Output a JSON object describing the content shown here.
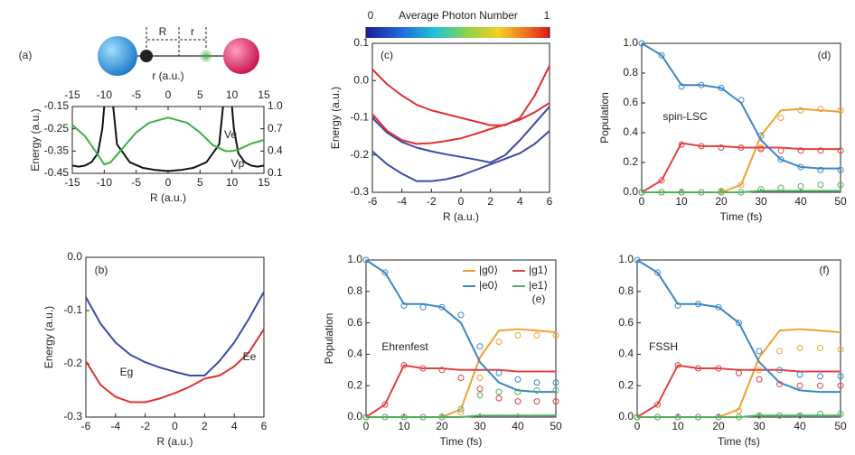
{
  "chart_data": [
    {
      "type": "line",
      "label": "(a)",
      "annotations": [
        "R",
        "r"
      ],
      "y_label": "Energy (a.u.)",
      "x_label": "R (a.u.)",
      "x2_label": "r (a.u.)",
      "x2_color": "#3cb043",
      "xlim": [
        -15,
        15
      ],
      "xticks": [
        -15,
        -10,
        -5,
        0,
        5,
        10,
        15
      ],
      "x2lim": [
        -15,
        15
      ],
      "x2ticks": [
        -15,
        -10,
        -5,
        0,
        5,
        10,
        15
      ],
      "ylim": [
        -0.45,
        -0.15
      ],
      "yticks": [
        -0.45,
        -0.35,
        -0.25,
        -0.15
      ],
      "y2lim": [
        0.1,
        1.0
      ],
      "y2ticks": [
        0.1,
        0.4,
        0.7,
        {
          "value": 1,
          "label": "1.0"
        }
      ],
      "series": [
        {
          "name": "Vp",
          "color": "#111111",
          "x": [
            -15,
            -14,
            -13,
            -12,
            -11,
            -10.3,
            -10,
            -9,
            -8.6,
            -8,
            -6,
            -4,
            -2,
            0,
            2,
            4,
            6,
            8,
            8.6,
            9,
            10,
            10.3,
            11,
            12,
            13,
            14,
            15
          ],
          "values": [
            -0.415,
            -0.42,
            -0.415,
            -0.4,
            -0.36,
            -0.25,
            -0.15,
            null,
            -0.15,
            -0.32,
            -0.4,
            -0.425,
            -0.435,
            -0.44,
            -0.435,
            -0.425,
            -0.4,
            -0.32,
            -0.15,
            null,
            -0.15,
            -0.25,
            -0.36,
            -0.4,
            -0.415,
            -0.42,
            -0.415
          ]
        },
        {
          "name": "Ve",
          "color": "#3cb043",
          "axis": "y2",
          "x_axis": "x2",
          "x": [
            -15,
            -13,
            -11,
            -10,
            -9,
            -7,
            -5,
            -3,
            0,
            3,
            5,
            7,
            9,
            10,
            11,
            13,
            15
          ],
          "values": [
            0.75,
            0.6,
            0.35,
            0.22,
            0.25,
            0.45,
            0.65,
            0.78,
            0.85,
            0.78,
            0.65,
            0.48,
            0.4,
            0.4,
            0.42,
            0.5,
            0.55
          ]
        }
      ]
    },
    {
      "type": "line",
      "label": "(b)",
      "y_label": "Energy (a.u.)",
      "x_label": "R (a.u.)",
      "xlim": [
        -6,
        6
      ],
      "xticks": [
        -6,
        -4,
        -2,
        0,
        2,
        4,
        6
      ],
      "ylim": [
        -0.3,
        0
      ],
      "yticks": [
        -0.3,
        -0.2,
        -0.1,
        {
          "value": 0,
          "label": "0.0"
        }
      ],
      "x": [
        -6,
        -5,
        -4,
        -3,
        -2,
        -1,
        0,
        1,
        2,
        3,
        4,
        5,
        6
      ],
      "series": [
        {
          "name": "Eg",
          "color": "#e03030",
          "values": [
            -0.195,
            -0.24,
            -0.262,
            -0.272,
            -0.272,
            -0.265,
            -0.255,
            -0.243,
            -0.228,
            -0.222,
            -0.205,
            -0.178,
            -0.135
          ]
        },
        {
          "name": "Ee",
          "color": "#3a4aa8",
          "values": [
            -0.075,
            -0.125,
            -0.16,
            -0.183,
            -0.197,
            -0.207,
            -0.215,
            -0.222,
            -0.222,
            -0.195,
            -0.16,
            -0.115,
            -0.065
          ]
        }
      ]
    },
    {
      "type": "line",
      "label": "(c)",
      "y_label": "Energy (a.u.)",
      "x_label": "R (a.u.)",
      "colorbar": {
        "label": "Average Photon Number",
        "ticks": [
          0,
          1
        ]
      },
      "xlim": [
        -6,
        6
      ],
      "xticks": [
        -6,
        -4,
        -2,
        0,
        2,
        4,
        6
      ],
      "ylim": [
        -0.3,
        0.1
      ],
      "yticks": [
        -0.3,
        -0.2,
        -0.1,
        {
          "value": 0,
          "label": "0.0"
        },
        0.1
      ],
      "x": [
        -6,
        -5,
        -4,
        -3,
        -2,
        -1,
        0,
        1,
        2,
        3,
        4,
        5,
        6
      ],
      "series": [
        {
          "color": "#3a4aa8",
          "values": [
            -0.19,
            -0.225,
            -0.25,
            -0.27,
            -0.27,
            -0.265,
            -0.255,
            -0.24,
            -0.225,
            -0.21,
            -0.195,
            -0.17,
            -0.135
          ]
        },
        {
          "color": "#3a4aa8",
          "values": [
            -0.1,
            -0.14,
            -0.165,
            -0.18,
            -0.19,
            -0.198,
            -0.205,
            -0.212,
            -0.22,
            -0.2,
            -0.16,
            -0.115,
            -0.07
          ]
        },
        {
          "color": "#e03030",
          "values": [
            -0.09,
            -0.135,
            -0.16,
            -0.17,
            -0.168,
            -0.162,
            -0.155,
            -0.143,
            -0.13,
            -0.118,
            -0.105,
            -0.085,
            -0.06
          ]
        },
        {
          "color": "#e03030",
          "values": [
            0.03,
            -0.01,
            -0.04,
            -0.065,
            -0.08,
            -0.09,
            -0.1,
            -0.11,
            -0.12,
            -0.12,
            -0.1,
            -0.04,
            0.04
          ]
        }
      ]
    },
    {
      "type": "line",
      "label": "(d)",
      "annotations": [
        "spin-LSC"
      ],
      "y_label": "Population",
      "x_label": "Time (fs)",
      "xlim": [
        0,
        50
      ],
      "xticks": [
        0,
        10,
        20,
        30,
        40,
        50
      ],
      "ylim": [
        0,
        1
      ],
      "yticks": [
        {
          "value": 0,
          "label": "0.0"
        },
        0.2,
        0.4,
        0.6,
        0.8,
        {
          "value": 1,
          "label": "1.0"
        }
      ],
      "x": [
        0,
        5,
        10,
        15,
        20,
        25,
        30,
        35,
        40,
        45,
        50
      ],
      "series": [
        {
          "color": "#f0a030",
          "values": [
            0,
            0,
            0,
            0,
            0,
            0.05,
            0.38,
            0.55,
            0.56,
            0.55,
            0.54
          ]
        },
        {
          "color": "#e04040",
          "values": [
            0,
            0.08,
            0.33,
            0.31,
            0.31,
            0.3,
            0.3,
            0.3,
            0.29,
            0.29,
            0.29
          ]
        },
        {
          "color": "#3a86c8",
          "values": [
            1,
            0.92,
            0.72,
            0.72,
            0.7,
            0.6,
            0.35,
            0.22,
            0.17,
            0.16,
            0.16
          ]
        },
        {
          "color": "#50b060",
          "values": [
            0,
            0,
            0,
            0,
            0,
            0,
            0.01,
            0.01,
            0.01,
            0.01,
            0.01
          ]
        },
        {
          "color": "#f0a030",
          "marker": "circle",
          "values": [
            0,
            0,
            0,
            0,
            0.01,
            0.05,
            0.3,
            0.5,
            0.55,
            0.56,
            0.55
          ]
        },
        {
          "color": "#e04040",
          "marker": "circle",
          "values": [
            0,
            0.08,
            0.32,
            0.31,
            0.3,
            0.3,
            0.29,
            0.28,
            0.28,
            0.28,
            0.28
          ]
        },
        {
          "color": "#3a86c8",
          "marker": "circle",
          "values": [
            1,
            0.92,
            0.71,
            0.72,
            0.7,
            0.62,
            0.38,
            0.22,
            0.17,
            0.15,
            0.15
          ]
        },
        {
          "color": "#50b060",
          "marker": "circle",
          "values": [
            0,
            0,
            0,
            0,
            0,
            0,
            0.02,
            0.03,
            0.04,
            0.05,
            0.05
          ]
        }
      ]
    },
    {
      "type": "line",
      "label": "(e)",
      "annotations": [
        "Ehrenfest"
      ],
      "y_label": "Population",
      "x_label": "Time (fs)",
      "legend": "top-right",
      "xlim": [
        0,
        50
      ],
      "xticks": [
        0,
        10,
        20,
        30,
        40,
        50
      ],
      "ylim": [
        0,
        1
      ],
      "yticks": [
        {
          "value": 0,
          "label": "0.0"
        },
        0.2,
        0.4,
        0.6,
        0.8,
        {
          "value": 1,
          "label": "1.0"
        }
      ],
      "x": [
        0,
        5,
        10,
        15,
        20,
        25,
        30,
        35,
        40,
        45,
        50
      ],
      "series": [
        {
          "name": "|g0⟩",
          "color": "#f0a030",
          "values": [
            0,
            0,
            0,
            0,
            0,
            0.05,
            0.38,
            0.55,
            0.56,
            0.55,
            0.54
          ]
        },
        {
          "name": "|g1⟩",
          "color": "#e04040",
          "values": [
            0,
            0.08,
            0.33,
            0.31,
            0.31,
            0.3,
            0.3,
            0.3,
            0.29,
            0.29,
            0.29
          ]
        },
        {
          "name": "|e0⟩",
          "color": "#3a86c8",
          "values": [
            1,
            0.92,
            0.72,
            0.72,
            0.7,
            0.6,
            0.35,
            0.22,
            0.17,
            0.16,
            0.16
          ]
        },
        {
          "name": "|e1⟩",
          "color": "#50b060",
          "values": [
            0,
            0,
            0,
            0,
            0,
            0,
            0.01,
            0.01,
            0.01,
            0.01,
            0.01
          ]
        },
        {
          "color": "#f0a030",
          "marker": "circle",
          "values": [
            0,
            0,
            0,
            0,
            0,
            0.03,
            0.25,
            0.48,
            0.52,
            0.52,
            0.52
          ]
        },
        {
          "color": "#e04040",
          "marker": "circle",
          "values": [
            0,
            0.08,
            0.33,
            0.31,
            0.3,
            0.25,
            0.18,
            0.12,
            0.1,
            0.1,
            0.1
          ]
        },
        {
          "color": "#3a86c8",
          "marker": "circle",
          "values": [
            1,
            0.92,
            0.71,
            0.7,
            0.7,
            0.65,
            0.45,
            0.28,
            0.24,
            0.22,
            0.22
          ]
        },
        {
          "color": "#50b060",
          "marker": "circle",
          "values": [
            0,
            0,
            0,
            0,
            0,
            0.05,
            0.14,
            0.16,
            0.16,
            0.17,
            0.17
          ]
        }
      ]
    },
    {
      "type": "line",
      "label": "(f)",
      "annotations": [
        "FSSH"
      ],
      "x_label": "Time (fs)",
      "xlim": [
        0,
        50
      ],
      "xticks": [
        0,
        10,
        20,
        30,
        40,
        50
      ],
      "ylim": [
        0,
        1
      ],
      "yticks": [
        {
          "value": 0,
          "label": "0.0"
        },
        0.2,
        0.4,
        0.6,
        0.8,
        {
          "value": 1,
          "label": "1.0"
        }
      ],
      "x": [
        0,
        5,
        10,
        15,
        20,
        25,
        30,
        35,
        40,
        45,
        50
      ],
      "series": [
        {
          "color": "#f0a030",
          "values": [
            0,
            0,
            0,
            0,
            0,
            0.05,
            0.38,
            0.55,
            0.56,
            0.55,
            0.54
          ]
        },
        {
          "color": "#e04040",
          "values": [
            0,
            0.08,
            0.33,
            0.31,
            0.31,
            0.3,
            0.3,
            0.3,
            0.29,
            0.29,
            0.29
          ]
        },
        {
          "color": "#3a86c8",
          "values": [
            1,
            0.92,
            0.72,
            0.72,
            0.7,
            0.6,
            0.35,
            0.22,
            0.17,
            0.16,
            0.16
          ]
        },
        {
          "color": "#50b060",
          "values": [
            0,
            0,
            0,
            0,
            0,
            0,
            0.01,
            0.01,
            0.01,
            0.01,
            0.01
          ]
        },
        {
          "color": "#f0a030",
          "marker": "circle",
          "values": [
            0,
            0,
            0,
            0,
            0,
            0.04,
            0.3,
            0.42,
            0.44,
            0.44,
            0.43
          ]
        },
        {
          "color": "#e04040",
          "marker": "circle",
          "values": [
            0,
            0.08,
            0.33,
            0.31,
            0.31,
            0.28,
            0.24,
            0.21,
            0.2,
            0.2,
            0.2
          ]
        },
        {
          "color": "#3a86c8",
          "marker": "circle",
          "values": [
            1,
            0.92,
            0.71,
            0.72,
            0.7,
            0.6,
            0.42,
            0.3,
            0.27,
            0.26,
            0.26
          ]
        },
        {
          "color": "#50b060",
          "marker": "circle",
          "values": [
            0,
            0,
            0,
            0,
            0,
            0,
            0.01,
            0.01,
            0.01,
            0.02,
            0.02
          ]
        }
      ]
    }
  ]
}
